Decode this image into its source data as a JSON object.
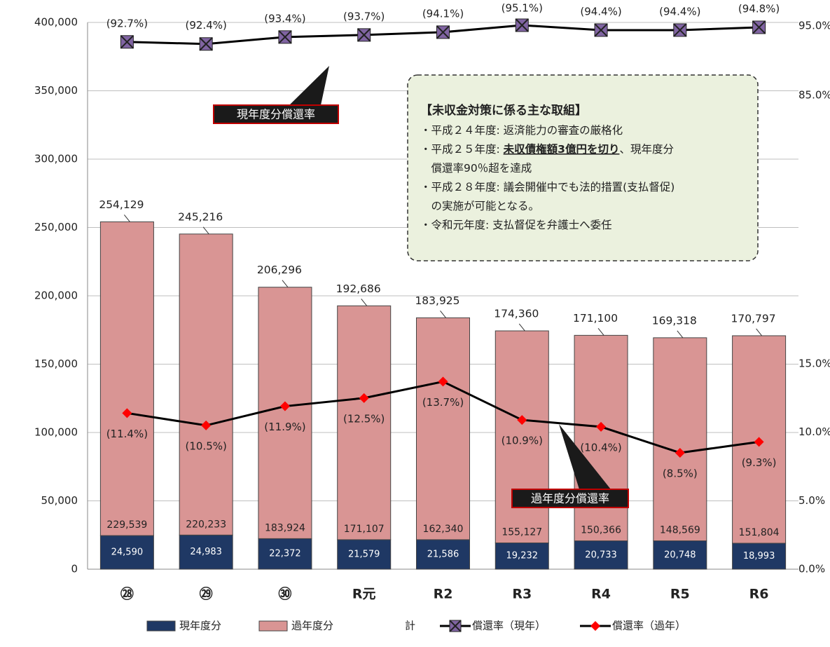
{
  "chart_data": {
    "type": "bar",
    "stacked": true,
    "categories": [
      "㉘",
      "㉙",
      "㉚",
      "R元",
      "R2",
      "R3",
      "R4",
      "R5",
      "R6"
    ],
    "series": [
      {
        "name": "現年度分",
        "color": "#1f3864",
        "values": [
          24590,
          24983,
          22372,
          21579,
          21586,
          19232,
          20733,
          20748,
          18993
        ],
        "value_labels": [
          "24,590",
          "24,983",
          "22,372",
          "21,579",
          "21,586",
          "19,232",
          "20,733",
          "20,748",
          "18,993"
        ]
      },
      {
        "name": "過年度分",
        "color": "#d99594",
        "values": [
          229539,
          220233,
          183924,
          171107,
          162340,
          155127,
          150366,
          148569,
          151804
        ],
        "value_labels": [
          "229,539",
          "220,233",
          "183,924",
          "171,107",
          "162,340",
          "155,127",
          "150,366",
          "148,569",
          "151,804"
        ]
      },
      {
        "name": "計",
        "type": "total",
        "values": [
          254129,
          245216,
          206296,
          192686,
          183925,
          174360,
          171100,
          169318,
          170797
        ],
        "value_labels": [
          "254,129",
          "245,216",
          "206,296",
          "192,686",
          "183,925",
          "174,360",
          "171,100",
          "169,318",
          "170,797"
        ]
      },
      {
        "name": "償還率（現年）",
        "type": "line",
        "axis": "y2",
        "color": "#000000",
        "marker": "x",
        "marker_color": "#8064a2",
        "values": [
          92.7,
          92.4,
          93.4,
          93.7,
          94.1,
          95.1,
          94.4,
          94.4,
          94.8
        ],
        "value_labels": [
          "(92.7%)",
          "(92.4%)",
          "(93.4%)",
          "(93.7%)",
          "(94.1%)",
          "(95.1%)",
          "(94.4%)",
          "(94.4%)",
          "(94.8%)"
        ]
      },
      {
        "name": "償還率（過年）",
        "type": "line",
        "axis": "y2",
        "color": "#000000",
        "marker": "diamond",
        "marker_color": "#ff0000",
        "values": [
          11.4,
          10.5,
          11.9,
          12.5,
          13.7,
          10.9,
          10.4,
          8.5,
          9.3
        ],
        "value_labels": [
          "(11.4%)",
          "(10.5%)",
          "(11.9%)",
          "(12.5%)",
          "(13.7%)",
          "(10.9%)",
          "(10.4%)",
          "(8.5%)",
          "(9.3%)"
        ]
      }
    ],
    "ylim": [
      0,
      400000
    ],
    "yticks": [
      {
        "value": 0,
        "label": "0"
      },
      {
        "value": 50000,
        "label": "50,000"
      },
      {
        "value": 100000,
        "label": "100,000"
      },
      {
        "value": 150000,
        "label": "150,000"
      },
      {
        "value": 200000,
        "label": "200,000"
      },
      {
        "value": 250000,
        "label": "250,000"
      },
      {
        "value": 300000,
        "label": "300,000"
      },
      {
        "value": 350000,
        "label": "350,000"
      },
      {
        "value": 400000,
        "label": "400,000"
      }
    ],
    "y2lim": [
      0,
      95
    ],
    "y2_break": [
      15,
      85
    ],
    "y2ticks": [
      {
        "value": 0,
        "label": "0.0%"
      },
      {
        "value": 5,
        "label": "5.0%"
      },
      {
        "value": 10,
        "label": "10.0%"
      },
      {
        "value": 15,
        "label": "15.0%"
      },
      {
        "value": 85,
        "label": "85.0%"
      },
      {
        "value": 95,
        "label": "95.0%"
      }
    ],
    "grid": true,
    "legend": "bottom",
    "annotations": [
      "現年度分償還率",
      "過年度分償還率"
    ],
    "note": {
      "title": "【未収金対策に係る主な取組】",
      "lines": [
        [
          "・平成２４年度: 返済能力の審査の厳格化"
        ],
        [
          "・平成２５年度: ",
          "未収債権額3億円を切り",
          "、現年度分"
        ],
        [
          "　償還率90％超を達成"
        ],
        [
          "・平成２８年度: 議会開催中でも法的措置(支払督促)"
        ],
        [
          "　の実施が可能となる。"
        ],
        [
          "・令和元年度: 支払督促を弁護士へ委任"
        ]
      ],
      "emphasis": [
        1,
        1
      ]
    }
  }
}
